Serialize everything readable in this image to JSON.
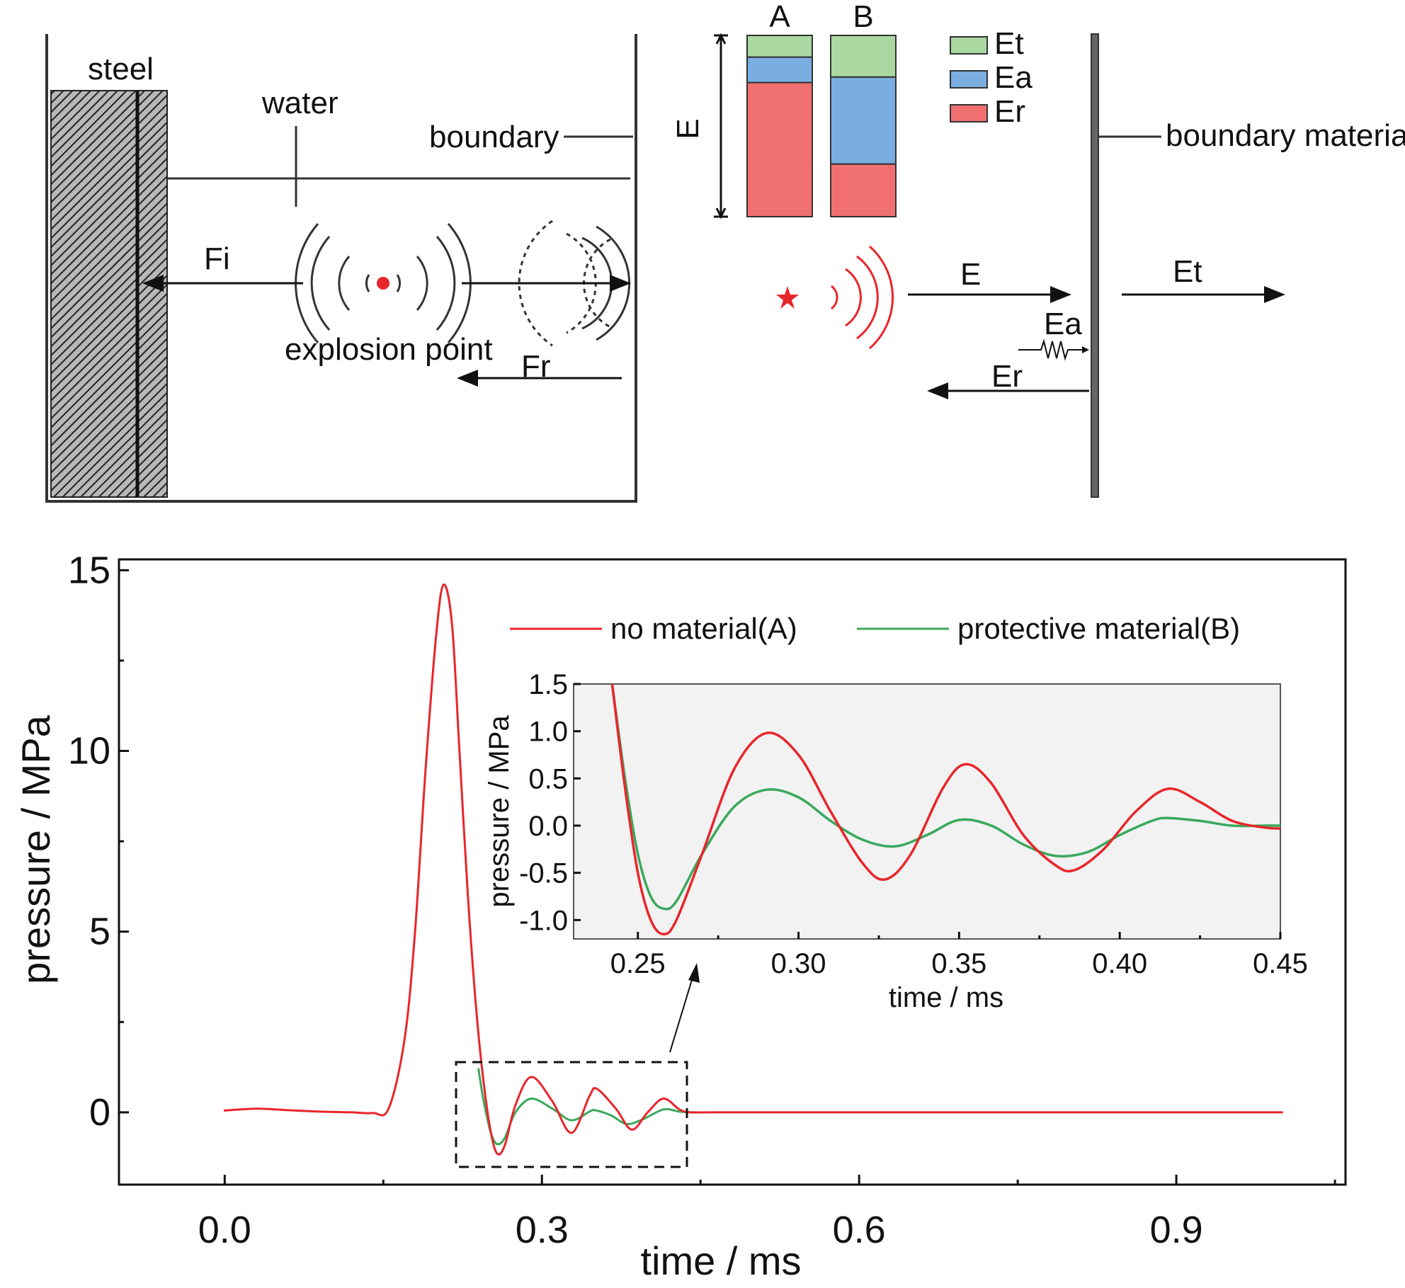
{
  "schematic": {
    "left": {
      "labels": {
        "steel": "steel",
        "water": "water",
        "boundary": "boundary",
        "fi": "Fi",
        "fr": "Fr",
        "explosion_point": "explosion point"
      },
      "explosion_color": "#e8262b"
    },
    "energy_bars": {
      "axis_label": "E",
      "bars": [
        {
          "name": "A",
          "Et": 0.12,
          "Ea": 0.14,
          "Er": 0.74
        },
        {
          "name": "B",
          "Et": 0.23,
          "Ea": 0.48,
          "Er": 0.29
        }
      ],
      "legend": [
        {
          "key": "Et",
          "label": "Et",
          "color": "#a9d8a0"
        },
        {
          "key": "Ea",
          "label": "Ea",
          "color": "#7aaee0"
        },
        {
          "key": "Er",
          "label": "Er",
          "color": "#f07070"
        }
      ]
    },
    "right": {
      "labels": {
        "boundary_material": "boundary material",
        "e": "E",
        "et": "Et",
        "ea": "Ea",
        "er": "Er"
      }
    }
  },
  "chart_data": [
    {
      "type": "line",
      "xlabel": "time / ms",
      "ylabel": "pressure / MPa",
      "xlim": [
        -0.1,
        1.06
      ],
      "ylim": [
        -2.0,
        15.3
      ],
      "xticks": [
        "0.0",
        "0.3",
        "0.6",
        "0.9"
      ],
      "xtick_values": [
        0.0,
        0.3,
        0.6,
        0.9
      ],
      "yticks": [
        "0",
        "5",
        "10",
        "15"
      ],
      "ytick_values": [
        0,
        5,
        10,
        15
      ],
      "legend_position": "top-right",
      "series": [
        {
          "name": "no material(A)",
          "color": "#e8262b",
          "x": [
            0.0,
            0.03,
            0.06,
            0.09,
            0.12,
            0.14,
            0.155,
            0.17,
            0.18,
            0.19,
            0.2,
            0.207,
            0.215,
            0.222,
            0.23,
            0.238,
            0.245,
            0.252,
            0.258,
            0.265,
            0.275,
            0.29,
            0.31,
            0.328,
            0.345,
            0.352,
            0.37,
            0.385,
            0.4,
            0.415,
            0.43,
            0.44,
            0.46,
            0.6,
            0.8,
            1.0
          ],
          "y": [
            0.05,
            0.1,
            0.06,
            0.02,
            0.0,
            -0.02,
            0.1,
            2.0,
            5.0,
            9.5,
            13.2,
            14.6,
            13.5,
            10.0,
            6.0,
            2.8,
            0.8,
            -0.6,
            -1.15,
            -0.9,
            0.2,
            0.98,
            0.3,
            -0.57,
            0.45,
            0.65,
            0.1,
            -0.48,
            0.0,
            0.38,
            0.08,
            0.0,
            0.0,
            0.0,
            0.0,
            0.0
          ]
        },
        {
          "name": "protective material(B)",
          "color": "#3aa85c",
          "x": [
            0.24,
            0.245,
            0.252,
            0.258,
            0.265,
            0.275,
            0.29,
            0.31,
            0.328,
            0.345,
            0.35,
            0.365,
            0.38,
            0.395,
            0.415,
            0.43,
            0.445
          ],
          "y": [
            1.2,
            0.3,
            -0.6,
            -0.88,
            -0.7,
            0.0,
            0.38,
            0.1,
            -0.22,
            0.02,
            0.06,
            -0.08,
            -0.32,
            -0.2,
            0.08,
            0.02,
            0.0
          ]
        }
      ]
    },
    {
      "type": "line",
      "xlabel": "time / ms",
      "ylabel": "pressure / MPa",
      "xlim": [
        0.23,
        0.45
      ],
      "ylim": [
        -1.2,
        1.5
      ],
      "xticks": [
        "0.25",
        "0.30",
        "0.35",
        "0.40",
        "0.45"
      ],
      "xtick_values": [
        0.25,
        0.3,
        0.35,
        0.4,
        0.45
      ],
      "yticks": [
        "1.5",
        "1.0",
        "0.5",
        "0.0",
        "-0.5",
        "-1.0"
      ],
      "ytick_values": [
        1.5,
        1.0,
        0.5,
        0.0,
        -0.5,
        -1.0
      ],
      "series": [
        {
          "name": "no material(A)",
          "color": "#e8262b",
          "x": [
            0.242,
            0.246,
            0.25,
            0.254,
            0.258,
            0.262,
            0.27,
            0.28,
            0.29,
            0.3,
            0.31,
            0.32,
            0.327,
            0.335,
            0.345,
            0.352,
            0.36,
            0.37,
            0.38,
            0.386,
            0.395,
            0.405,
            0.415,
            0.425,
            0.435,
            0.445,
            0.45
          ],
          "y": [
            1.5,
            0.4,
            -0.5,
            -1.0,
            -1.15,
            -1.0,
            -0.3,
            0.6,
            0.98,
            0.75,
            0.15,
            -0.4,
            -0.57,
            -0.3,
            0.4,
            0.65,
            0.45,
            -0.1,
            -0.42,
            -0.47,
            -0.25,
            0.15,
            0.39,
            0.25,
            0.05,
            -0.02,
            -0.03
          ]
        },
        {
          "name": "protective material(B)",
          "color": "#3aa85c",
          "x": [
            0.242,
            0.246,
            0.25,
            0.254,
            0.258,
            0.262,
            0.27,
            0.28,
            0.29,
            0.3,
            0.31,
            0.32,
            0.33,
            0.34,
            0.35,
            0.36,
            0.37,
            0.38,
            0.39,
            0.4,
            0.41,
            0.415,
            0.425,
            0.435,
            0.445,
            0.45
          ],
          "y": [
            1.5,
            0.5,
            -0.3,
            -0.75,
            -0.88,
            -0.8,
            -0.3,
            0.2,
            0.38,
            0.3,
            0.05,
            -0.15,
            -0.22,
            -0.1,
            0.06,
            0.0,
            -0.2,
            -0.32,
            -0.28,
            -0.1,
            0.05,
            0.08,
            0.05,
            0.0,
            0.0,
            0.0
          ]
        }
      ]
    }
  ]
}
